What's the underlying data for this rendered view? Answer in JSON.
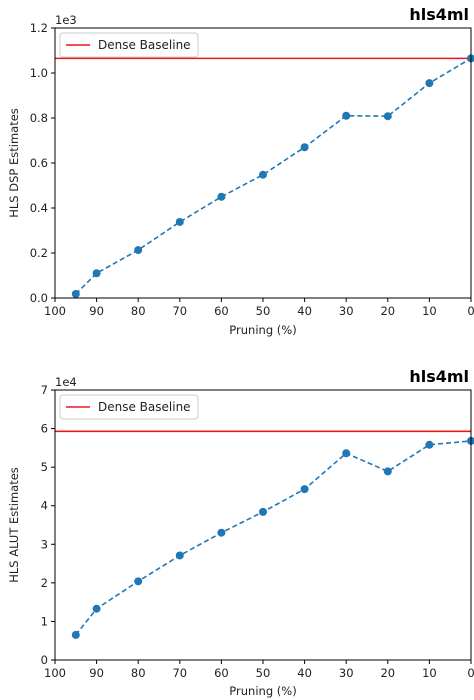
{
  "chart_data": [
    {
      "type": "line",
      "brand": "hls4ml",
      "xlabel": "Pruning (%)",
      "ylabel": "HLS DSP Estimates",
      "y_offset_label": "1e3",
      "x_ticks": [
        "100",
        "90",
        "80",
        "70",
        "60",
        "50",
        "40",
        "30",
        "20",
        "10",
        "0"
      ],
      "xlim": [
        100,
        0
      ],
      "y_ticks": [
        "0.0",
        "0.2",
        "0.4",
        "0.6",
        "0.8",
        "1.0",
        "1.2"
      ],
      "ylim": [
        0,
        1200
      ],
      "x": [
        95,
        90,
        80,
        70,
        60,
        50,
        40,
        30,
        20,
        10,
        0
      ],
      "y": [
        18,
        110,
        213,
        338,
        450,
        548,
        670,
        810,
        808,
        955,
        1065
      ],
      "baseline": {
        "label": "Dense Baseline",
        "value": 1065,
        "color": "#e8191b"
      },
      "series_color": "#1f77b4",
      "legend_position": "upper-left"
    },
    {
      "type": "line",
      "brand": "hls4ml",
      "xlabel": "Pruning (%)",
      "ylabel": "HLS ALUT Estimates",
      "y_offset_label": "1e4",
      "x_ticks": [
        "100",
        "90",
        "80",
        "70",
        "60",
        "50",
        "40",
        "30",
        "20",
        "10",
        "0"
      ],
      "xlim": [
        100,
        0
      ],
      "y_ticks": [
        "0",
        "1",
        "2",
        "3",
        "4",
        "5",
        "6",
        "7"
      ],
      "ylim": [
        0,
        70000
      ],
      "x": [
        95,
        90,
        80,
        70,
        60,
        50,
        40,
        30,
        20,
        10,
        0
      ],
      "y": [
        6500,
        13300,
        20400,
        27100,
        33000,
        38400,
        44300,
        53600,
        48900,
        55800,
        56800
      ],
      "baseline": {
        "label": "Dense Baseline",
        "value": 59300,
        "color": "#e8191b"
      },
      "series_color": "#1f77b4",
      "legend_position": "upper-left"
    }
  ]
}
